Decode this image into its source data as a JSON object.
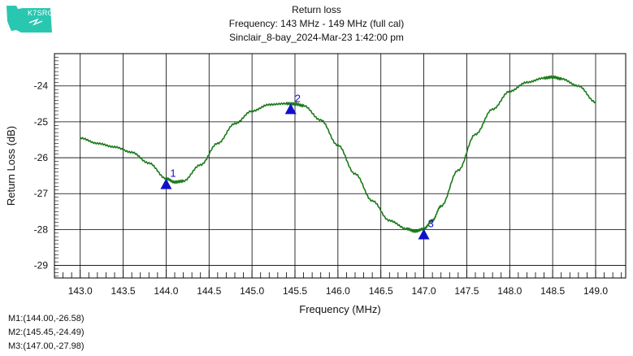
{
  "logo": {
    "text": "K7SRG"
  },
  "header": {
    "title": "Return loss",
    "subtitle": "Frequency: 143 MHz - 149 MHz (full cal)",
    "run": "Sinclair_8-bay_2024-Mar-23 1:42:00 pm"
  },
  "chart_data": {
    "type": "line",
    "title": "Return loss",
    "xlabel": "Frequency (MHz)",
    "ylabel": "Return Loss (dB)",
    "xlim": [
      142.7,
      149.35
    ],
    "ylim": [
      -29.35,
      -23.1
    ],
    "xticks": [
      "143.0",
      "143.5",
      "144.0",
      "144.5",
      "145.0",
      "145.5",
      "146.0",
      "146.5",
      "147.0",
      "147.5",
      "148.0",
      "148.5",
      "149.0"
    ],
    "yticks": [
      "-24",
      "-25",
      "-26",
      "-27",
      "-28",
      "-29"
    ],
    "grid": true,
    "series": [
      {
        "color": "#1a7a1a",
        "x": [
          143.0,
          143.2,
          143.4,
          143.6,
          143.8,
          144.0,
          144.1,
          144.2,
          144.4,
          144.6,
          144.8,
          145.0,
          145.2,
          145.4,
          145.5,
          145.6,
          145.8,
          146.0,
          146.2,
          146.4,
          146.6,
          146.8,
          146.9,
          147.0,
          147.1,
          147.2,
          147.4,
          147.6,
          147.8,
          148.0,
          148.2,
          148.4,
          148.5,
          148.6,
          148.8,
          149.0
        ],
        "y": [
          -25.45,
          -25.6,
          -25.7,
          -25.85,
          -26.15,
          -26.58,
          -26.68,
          -26.65,
          -26.2,
          -25.6,
          -25.05,
          -24.7,
          -24.52,
          -24.49,
          -24.5,
          -24.55,
          -24.95,
          -25.65,
          -26.45,
          -27.2,
          -27.75,
          -27.98,
          -28.05,
          -27.98,
          -27.75,
          -27.35,
          -26.35,
          -25.35,
          -24.65,
          -24.15,
          -23.9,
          -23.78,
          -23.75,
          -23.8,
          -24.0,
          -24.45
        ]
      }
    ],
    "markers": [
      {
        "label": "1",
        "x": 144.0,
        "y": -26.58
      },
      {
        "label": "2",
        "x": 145.45,
        "y": -24.49
      },
      {
        "label": "3",
        "x": 147.0,
        "y": -27.98
      }
    ],
    "readout": [
      "M1:(144.00,-26.58)",
      "M2:(145.45,-24.49)",
      "M3:(147.00,-27.98)"
    ],
    "marker_color": "#1010cc"
  }
}
